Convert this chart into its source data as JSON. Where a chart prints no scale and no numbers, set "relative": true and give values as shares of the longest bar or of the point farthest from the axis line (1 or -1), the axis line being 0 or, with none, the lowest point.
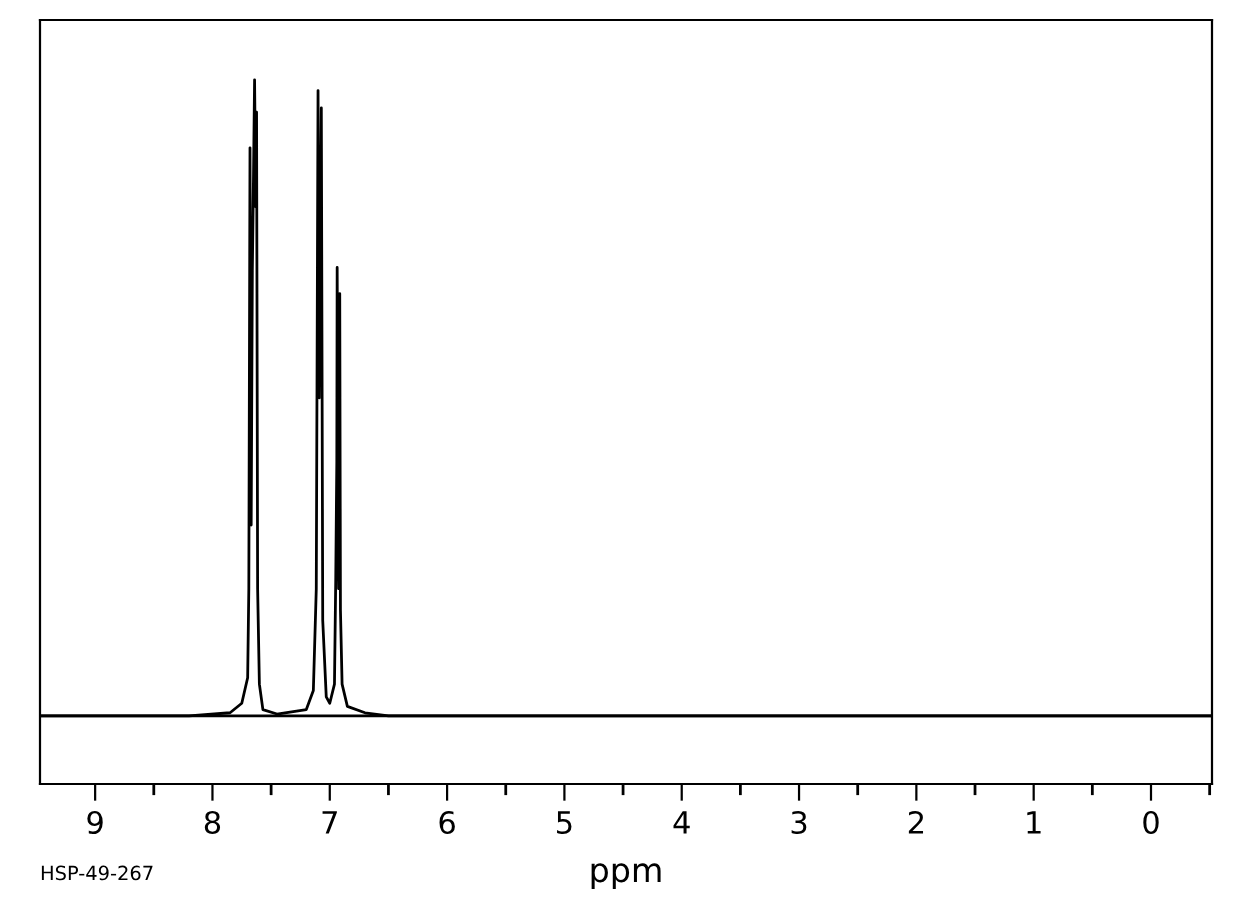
{
  "chart_data": {
    "type": "line",
    "relative": true,
    "xlabel": "ppm",
    "annotations": [
      "HSP-49-267"
    ],
    "xlim": [
      9.47,
      -0.52
    ],
    "xticks": [
      9,
      8,
      7,
      6,
      5,
      4,
      3,
      2,
      1,
      0
    ],
    "grid": false,
    "marker": "none",
    "line_style": "solid",
    "tick_labels": "x",
    "series": [
      {
        "color": "#000000",
        "x": [
          9.47,
          8.2,
          7.85,
          7.75,
          7.7,
          7.69,
          7.68,
          7.67,
          7.66,
          7.65,
          7.641,
          7.63,
          7.624,
          7.615,
          7.6,
          7.57,
          7.45,
          7.2,
          7.14,
          7.115,
          7.1,
          7.09,
          7.072,
          7.06,
          7.03,
          7.0,
          6.96,
          6.949,
          6.94,
          6.937,
          6.925,
          6.915,
          6.909,
          6.895,
          6.85,
          6.7,
          6.5,
          -0.52
        ],
        "values": [
          0,
          0,
          0.005,
          0.02,
          0.06,
          0.2,
          0.893,
          0.3,
          0.7,
          0.85,
          1.0,
          0.8,
          0.949,
          0.2,
          0.05,
          0.01,
          0.003,
          0.01,
          0.04,
          0.2,
          0.983,
          0.5,
          0.956,
          0.15,
          0.03,
          0.02,
          0.05,
          0.217,
          0.4,
          0.705,
          0.2,
          0.664,
          0.166,
          0.05,
          0.015,
          0.005,
          0,
          0
        ]
      }
    ]
  }
}
